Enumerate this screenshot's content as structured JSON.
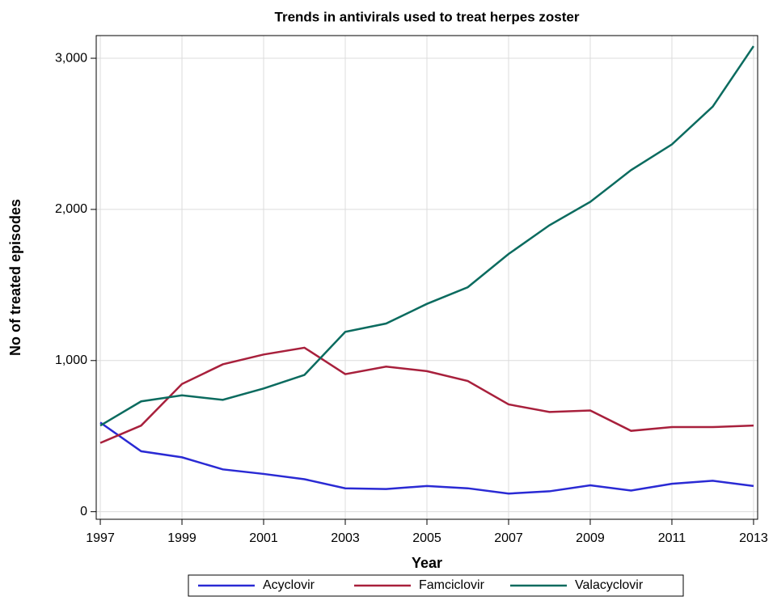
{
  "chart_data": {
    "type": "line",
    "title": "Trends in antivirals used to treat herpes zoster",
    "x_label": "Year",
    "y_label": "No of treated episodes",
    "x": [
      1997,
      1998,
      1999,
      2000,
      2001,
      2002,
      2003,
      2004,
      2005,
      2006,
      2007,
      2008,
      2009,
      2010,
      2011,
      2012,
      2013
    ],
    "series": [
      {
        "name": "Acyclovir",
        "color": "#2a2ad4",
        "values": [
          590,
          400,
          360,
          280,
          250,
          215,
          155,
          150,
          170,
          155,
          120,
          135,
          175,
          140,
          185,
          205,
          170
        ]
      },
      {
        "name": "Famciclovir",
        "color": "#a8203c",
        "values": [
          455,
          570,
          845,
          975,
          1040,
          1085,
          910,
          960,
          930,
          865,
          710,
          660,
          670,
          535,
          560,
          560,
          570
        ]
      },
      {
        "name": "Valacyclovir",
        "color": "#0b6b5f",
        "values": [
          570,
          730,
          770,
          740,
          815,
          905,
          1190,
          1245,
          1375,
          1485,
          1705,
          1895,
          2050,
          2260,
          2430,
          2680,
          3080
        ]
      }
    ],
    "xlim": [
      1996.9,
      2013.1
    ],
    "xticks": [
      1997,
      1999,
      2001,
      2003,
      2005,
      2007,
      2009,
      2011,
      2013
    ],
    "ylim": [
      -50,
      3150
    ],
    "yticks": [
      0,
      {
        "value": 1000,
        "label": "1,000"
      },
      {
        "value": 2000,
        "label": "2,000"
      },
      {
        "value": 3000,
        "label": "3,000"
      }
    ],
    "grid": true,
    "legend": "bottom"
  }
}
